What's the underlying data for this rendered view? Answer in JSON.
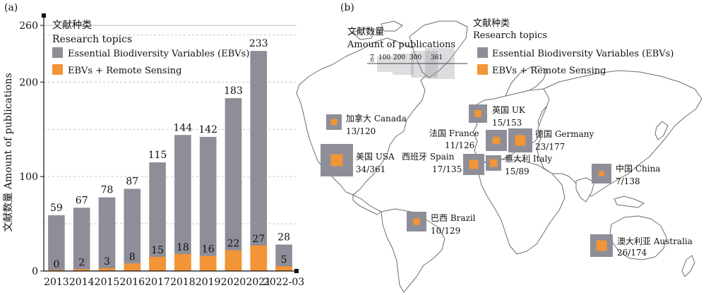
{
  "panel_a": {
    "label": "(a)"
  },
  "panel_b": {
    "label": "(b)"
  },
  "colors": {
    "ebv": "#8e8e99",
    "ebv_rs": "#f29536",
    "map_land": "#ffffff",
    "map_edge": "#6d6d6d",
    "size_box": "#8e8e99"
  },
  "chart_data": [
    {
      "type": "bar",
      "title": "",
      "ylabel": "文献数量 Amount of publications",
      "xlabel": "",
      "categories": [
        "2013",
        "2014",
        "2015",
        "2016",
        "2017",
        "2018",
        "2019",
        "2020",
        "2021",
        "2022-03"
      ],
      "series": [
        {
          "name": "Essential Biodiversity Variables (EBVs)",
          "values": [
            59,
            67,
            78,
            87,
            115,
            144,
            142,
            183,
            233,
            28
          ]
        },
        {
          "name": "EBVs + Remote Sensing",
          "values": [
            0,
            2,
            3,
            8,
            15,
            18,
            16,
            22,
            27,
            5
          ]
        }
      ],
      "ylim": [
        0,
        260
      ],
      "yticks": [
        0,
        100,
        200,
        260
      ],
      "grid": "dashed horizontal at 50-unit steps",
      "legend": {
        "title_cn": "文献种类",
        "title_en": "Research topics",
        "position": "top-left"
      }
    },
    {
      "type": "map",
      "legend": {
        "topic_title_cn": "文献种类",
        "topic_title_en": "Research topics",
        "topic_items": [
          "Essential Biodiversity Variables (EBVs)",
          "EBVs + Remote Sensing"
        ],
        "size_title_cn": "文献数量",
        "size_title_en": "Amount of publications",
        "size_values": [
          "7",
          "100",
          "200",
          "300",
          "361"
        ]
      },
      "countries": [
        {
          "name": "加拿大 Canada",
          "value": "13/120",
          "ebv": 120,
          "rs": 13
        },
        {
          "name": "美国 USA",
          "value": "34/361",
          "ebv": 361,
          "rs": 34
        },
        {
          "name": "英国 UK",
          "value": "15/153",
          "ebv": 153,
          "rs": 15
        },
        {
          "name": "法国 France",
          "value": "11/126",
          "ebv": 126,
          "rs": 11
        },
        {
          "name": "德国 Germany",
          "value": "23/177",
          "ebv": 177,
          "rs": 23
        },
        {
          "name": "西班牙 Spain",
          "value": "17/135",
          "ebv": 135,
          "rs": 17
        },
        {
          "name": "意大利 Italy",
          "value": "15/89",
          "ebv": 89,
          "rs": 15
        },
        {
          "name": "中国 China",
          "value": "7/138",
          "ebv": 138,
          "rs": 7
        },
        {
          "name": "巴西 Brazil",
          "value": "10/129",
          "ebv": 129,
          "rs": 10
        },
        {
          "name": "澳大利亚 Australia",
          "value": "26/174",
          "ebv": 174,
          "rs": 26
        }
      ]
    }
  ]
}
